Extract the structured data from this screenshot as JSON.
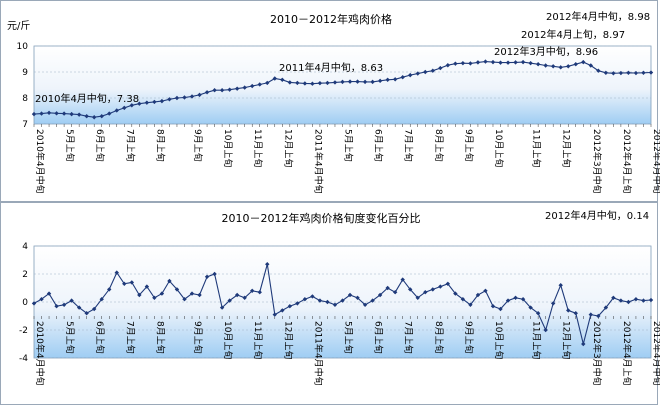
{
  "chart_data": [
    {
      "type": "line",
      "title": "2010－2012年鸡肉价格",
      "ylabel": "元/斤",
      "ylim": [
        7,
        10
      ],
      "yticks": [
        7,
        8,
        9,
        10
      ],
      "grid": true,
      "x_tick_labels": [
        "2010年4月中旬",
        "5月上旬",
        "6月上旬",
        "7月上旬",
        "8月上旬",
        "9月上旬",
        "10月上旬",
        "11月上旬",
        "12月上旬",
        "2011年4月中旬",
        "5月上旬",
        "6月上旬",
        "7月上旬",
        "8月上旬",
        "9月上旬",
        "10月上旬",
        "11月上旬",
        "12月上旬",
        "2012年3月中旬",
        "2012年4月上旬",
        "2012年4月中旬"
      ],
      "values": [
        7.38,
        7.4,
        7.43,
        7.41,
        7.4,
        7.38,
        7.36,
        7.3,
        7.26,
        7.3,
        7.4,
        7.52,
        7.62,
        7.72,
        7.78,
        7.82,
        7.85,
        7.88,
        7.95,
        8.0,
        8.02,
        8.06,
        8.12,
        8.22,
        8.3,
        8.3,
        8.32,
        8.36,
        8.4,
        8.46,
        8.52,
        8.58,
        8.75,
        8.7,
        8.6,
        8.58,
        8.56,
        8.55,
        8.57,
        8.58,
        8.6,
        8.62,
        8.63,
        8.63,
        8.62,
        8.62,
        8.66,
        8.7,
        8.72,
        8.8,
        8.88,
        8.94,
        9.0,
        9.05,
        9.15,
        9.26,
        9.32,
        9.34,
        9.33,
        9.37,
        9.4,
        9.38,
        9.36,
        9.36,
        9.37,
        9.38,
        9.34,
        9.3,
        9.25,
        9.22,
        9.18,
        9.22,
        9.3,
        9.38,
        9.25,
        9.05,
        8.97,
        8.95,
        8.96,
        8.97,
        8.96,
        8.97,
        8.98
      ],
      "annotations": [
        {
          "text": "2010年4月中旬，7.38",
          "index": 0
        },
        {
          "text": "2011年4月中旬，8.63",
          "index": 42
        },
        {
          "text": "2012年3月中旬，8.96",
          "index": 78
        },
        {
          "text": "2012年4月上旬，8.97",
          "index": 81
        },
        {
          "text": "2012年4月中旬，8.98",
          "index": 82
        }
      ]
    },
    {
      "type": "line",
      "title": "2010－2012年鸡肉价格旬度变化百分比",
      "ylabel": "",
      "ylim": [
        -4,
        4
      ],
      "yticks": [
        -4,
        -2,
        0,
        2,
        4
      ],
      "grid": true,
      "x_tick_labels": [
        "2010年4月中旬",
        "5月上旬",
        "6月上旬",
        "7月上旬",
        "8月上旬",
        "9月上旬",
        "10月上旬",
        "11月上旬",
        "12月上旬",
        "2011年4月中旬",
        "5月上旬",
        "6月上旬",
        "7月上旬",
        "8月上旬",
        "9月上旬",
        "10月上旬",
        "11月上旬",
        "12月上旬",
        "2012年3月中旬",
        "2012年4月上旬",
        "2012年4月中旬"
      ],
      "values": [
        -0.1,
        0.2,
        0.6,
        -0.3,
        -0.2,
        0.1,
        -0.4,
        -0.8,
        -0.5,
        0.2,
        0.9,
        2.1,
        1.3,
        1.4,
        0.5,
        1.1,
        0.3,
        0.6,
        1.5,
        0.9,
        0.2,
        0.6,
        0.5,
        1.8,
        2.0,
        -0.4,
        0.1,
        0.5,
        0.3,
        0.8,
        0.7,
        2.7,
        -0.9,
        -0.6,
        -0.3,
        -0.1,
        0.2,
        0.4,
        0.1,
        0.0,
        -0.2,
        0.1,
        0.5,
        0.3,
        -0.2,
        0.1,
        0.5,
        1.0,
        0.7,
        1.6,
        0.9,
        0.3,
        0.7,
        0.9,
        1.1,
        1.3,
        0.6,
        0.2,
        -0.2,
        0.5,
        0.8,
        -0.3,
        -0.5,
        0.1,
        0.3,
        0.2,
        -0.4,
        -0.8,
        -2.0,
        -0.1,
        1.2,
        -0.6,
        -0.8,
        -3.0,
        -0.9,
        -1.0,
        -0.4,
        0.3,
        0.1,
        0.0,
        0.2,
        0.1,
        0.14
      ],
      "annotations": [
        {
          "text": "2012年4月中旬，0.14",
          "index": 82
        }
      ]
    }
  ]
}
